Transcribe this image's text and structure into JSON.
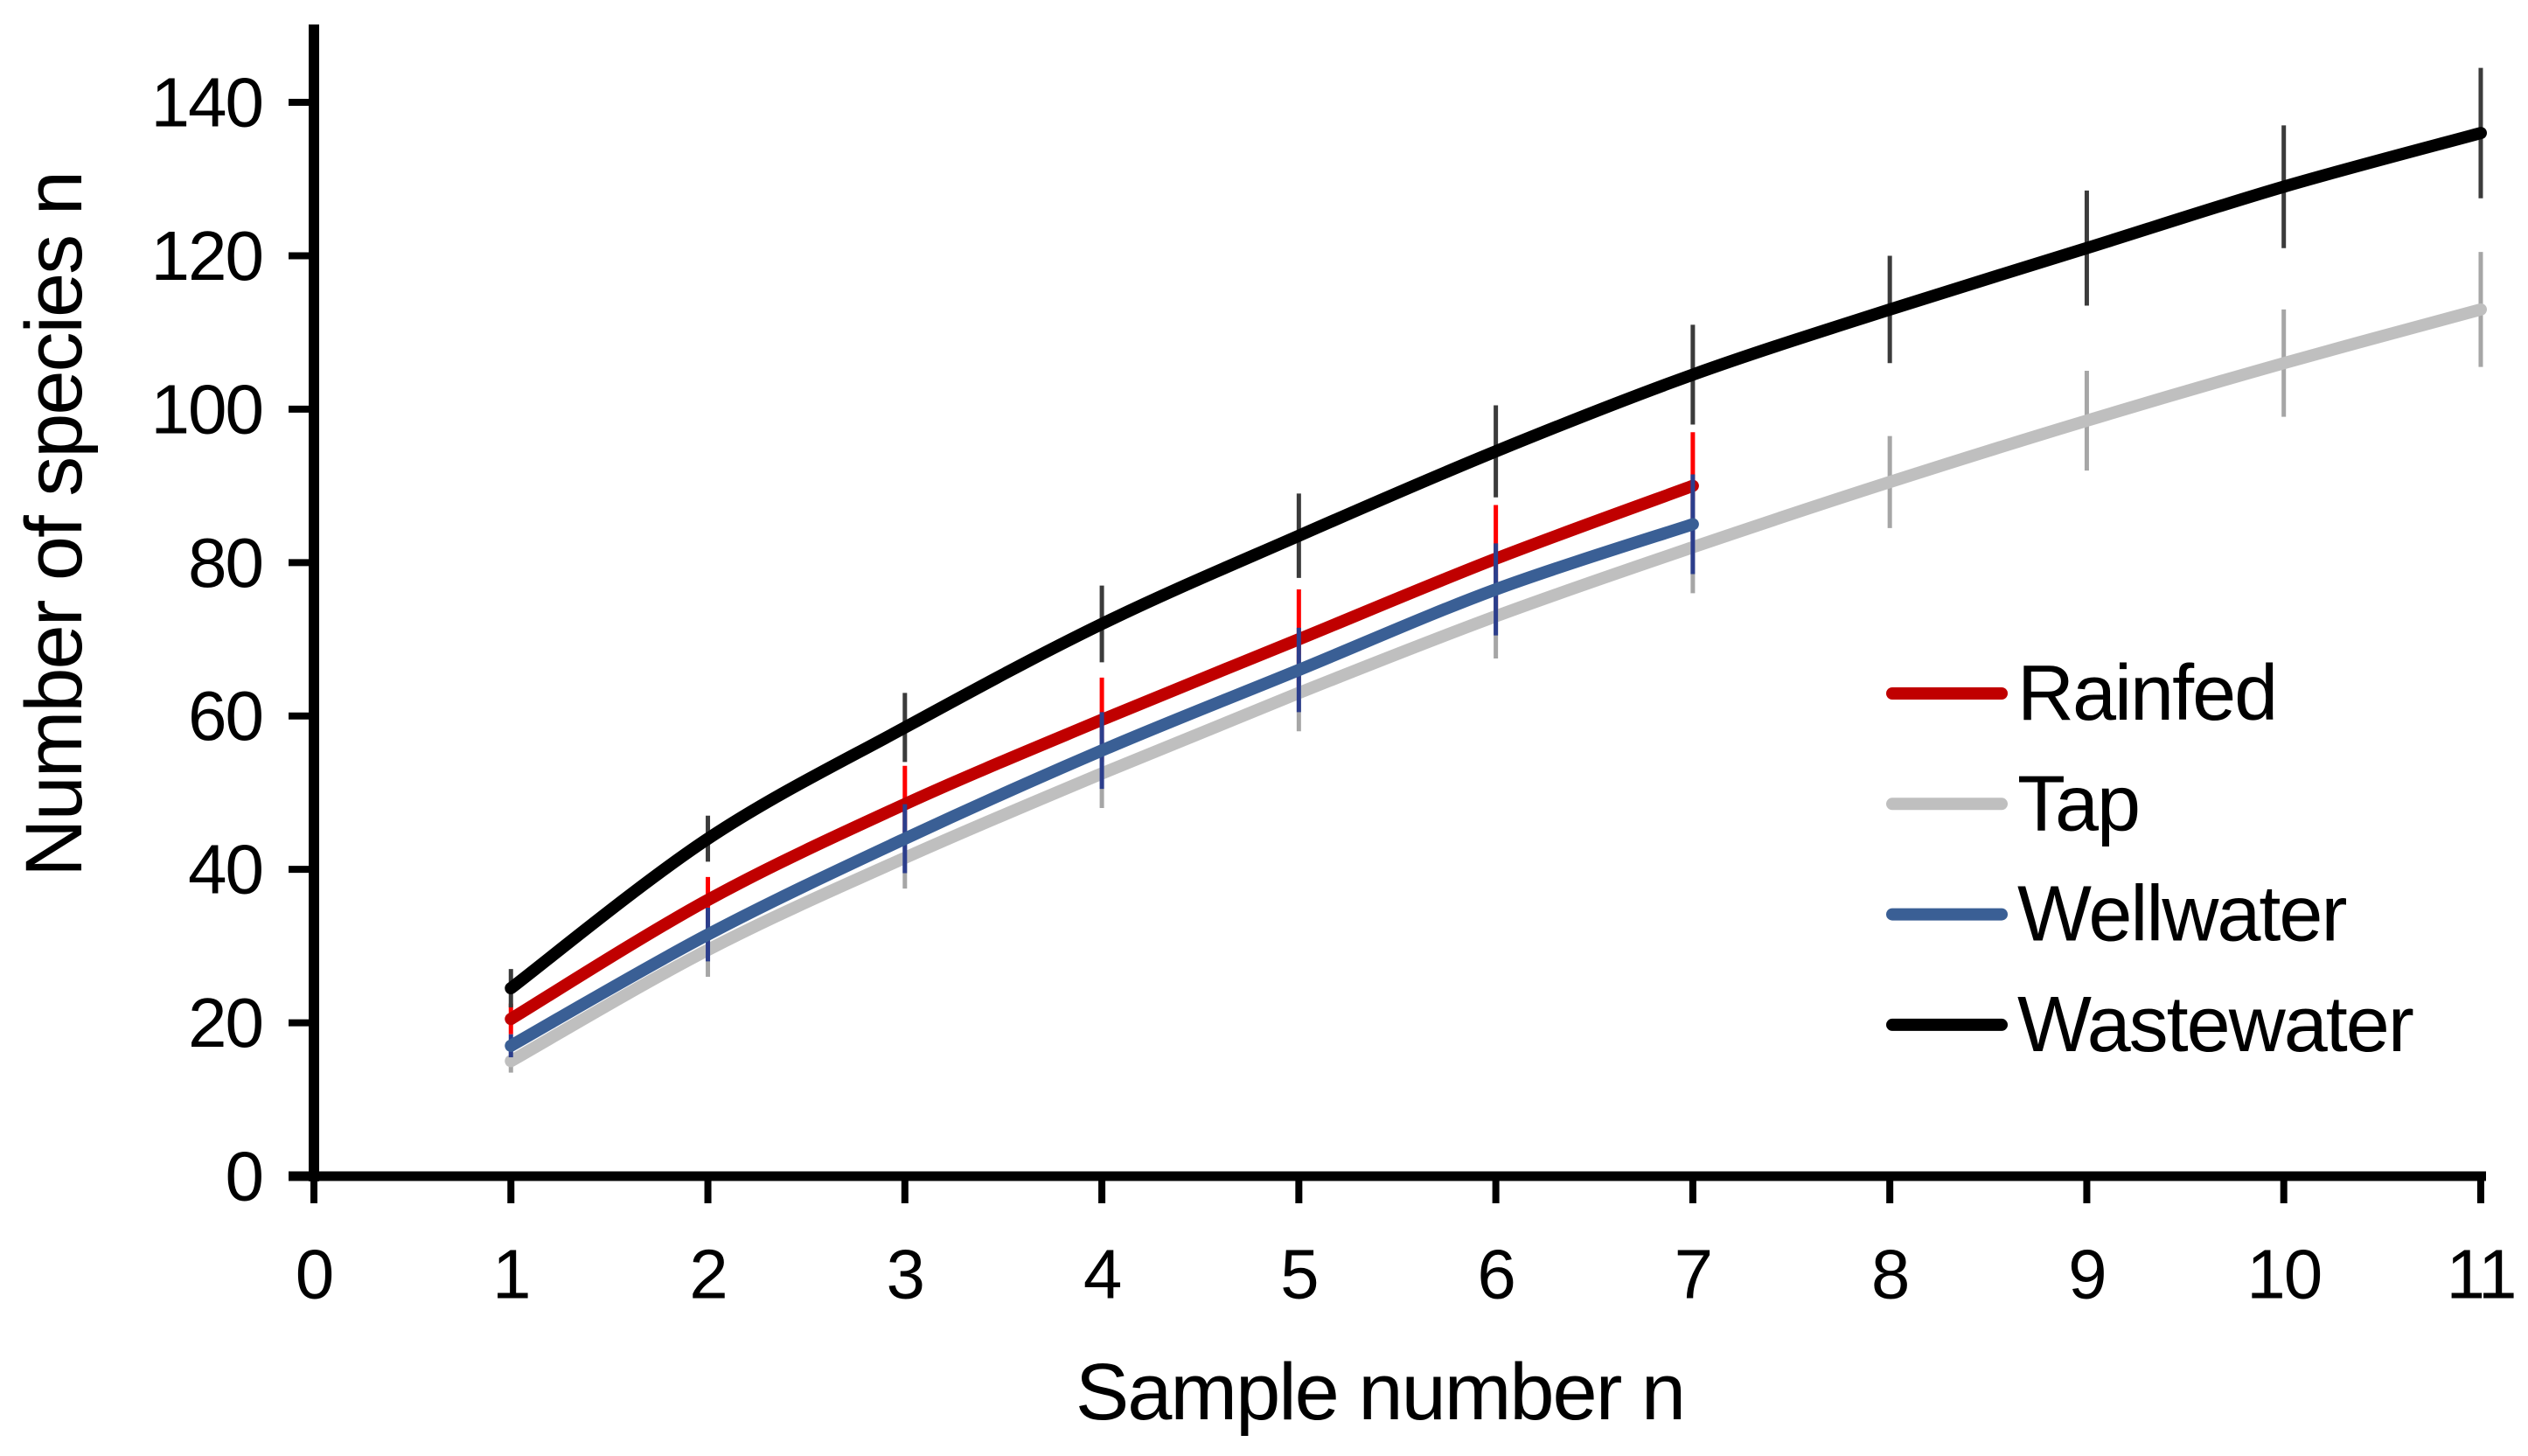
{
  "figure": {
    "background": "#FFFFFF",
    "text_color": "#000000",
    "axis_color": "#000000"
  },
  "chart_data": {
    "type": "line",
    "title": "",
    "xlabel": "Sample number n",
    "ylabel": "Number of species n",
    "xlim": [
      0,
      11
    ],
    "ylim": [
      0,
      140
    ],
    "x_ticks": [
      0,
      1,
      2,
      3,
      4,
      5,
      6,
      7,
      8,
      9,
      10,
      11
    ],
    "y_ticks": [
      0,
      20,
      40,
      60,
      80,
      100,
      120,
      140
    ],
    "grid": false,
    "legend_position": "inside-right",
    "error_bars": true,
    "series": [
      {
        "name": "Rainfed",
        "color": "#C00000",
        "error_color": "#FF0000",
        "x": [
          1,
          2,
          3,
          4,
          5,
          6,
          7
        ],
        "y": [
          20.5,
          36,
          48.5,
          59.5,
          70,
          80.5,
          90
        ],
        "y_err": [
          2,
          3,
          5,
          5.5,
          6.5,
          7,
          7
        ]
      },
      {
        "name": "Tap",
        "color": "#BFBFBF",
        "error_color": "#A6A6A6",
        "x": [
          1,
          2,
          3,
          4,
          5,
          6,
          7,
          8,
          9,
          10,
          11
        ],
        "y": [
          15,
          29.5,
          41.5,
          52.5,
          63,
          73,
          82,
          90.5,
          98.5,
          106,
          113
        ],
        "y_err": [
          1.5,
          3.5,
          4,
          4.5,
          5,
          5.5,
          6,
          6,
          6.5,
          7,
          7.5
        ]
      },
      {
        "name": "Wellwater",
        "color": "#3A5F95",
        "error_color": "#2C3E8C",
        "x": [
          1,
          2,
          3,
          4,
          5,
          6,
          7
        ],
        "y": [
          17,
          31.5,
          44,
          55.5,
          66,
          76.5,
          85
        ],
        "y_err": [
          1.5,
          3.5,
          4.5,
          5,
          5.5,
          6,
          6.5
        ]
      },
      {
        "name": "Wastewater",
        "color": "#000000",
        "error_color": "#3B3B3B",
        "x": [
          1,
          2,
          3,
          4,
          5,
          6,
          7,
          8,
          9,
          10,
          11
        ],
        "y": [
          24.5,
          44,
          58.5,
          72,
          83.5,
          94.5,
          104.5,
          113,
          121,
          129,
          136
        ],
        "y_err": [
          2.5,
          3,
          4.5,
          5,
          5.5,
          6,
          6.5,
          7,
          7.5,
          8,
          8.5
        ]
      }
    ]
  }
}
